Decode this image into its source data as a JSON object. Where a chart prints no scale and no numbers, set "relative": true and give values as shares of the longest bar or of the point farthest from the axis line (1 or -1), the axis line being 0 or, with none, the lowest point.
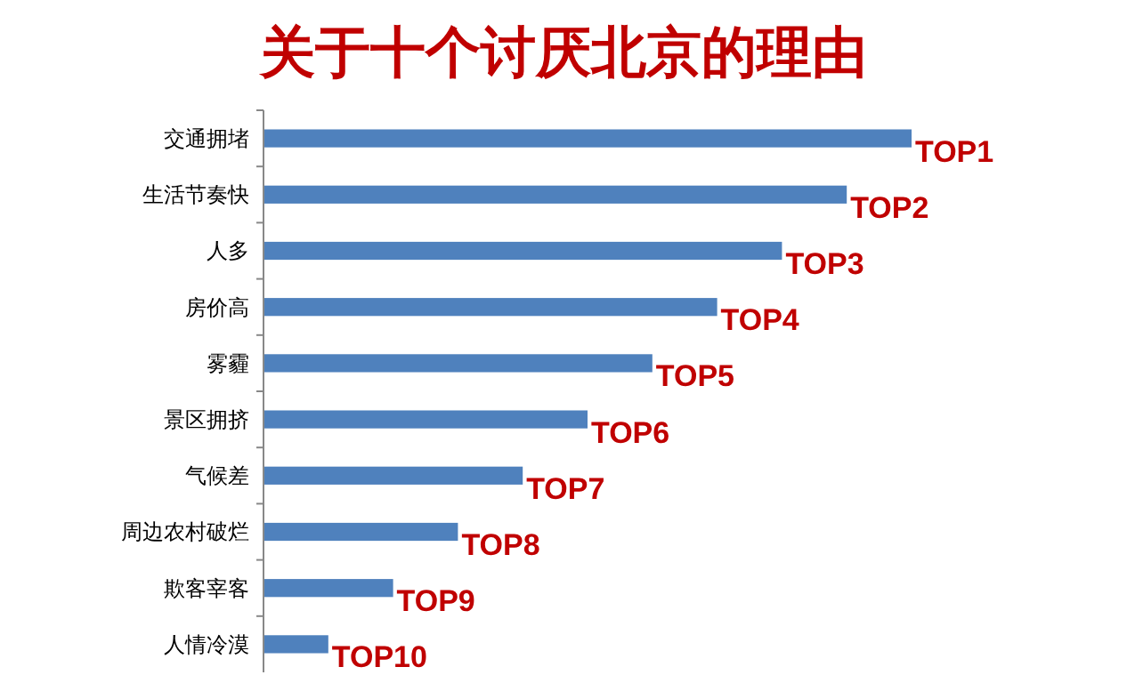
{
  "chart_data": {
    "type": "bar",
    "orientation": "horizontal",
    "relative": true,
    "title": "关于十个讨厌北京的理由",
    "categories": [
      "交通拥堵",
      "生活节奏快",
      "人多",
      "房价高",
      "雾霾",
      "景区拥挤",
      "气候差",
      "周边农村破烂",
      "欺客宰客",
      "人情冷漠"
    ],
    "values": [
      1,
      0.9,
      0.8,
      0.7,
      0.6,
      0.5,
      0.4,
      0.3,
      0.2,
      0.1
    ],
    "color": "#4f81bd",
    "annotations": [
      {
        "text": "TOP1",
        "x": 1,
        "y": "交通拥堵"
      },
      {
        "text": "TOP2",
        "x": 0.9,
        "y": "生活节奏快"
      },
      {
        "text": "TOP3",
        "x": 0.8,
        "y": "人多"
      },
      {
        "text": "TOP4",
        "x": 0.7,
        "y": "房价高"
      },
      {
        "text": "TOP5",
        "x": 0.6,
        "y": "雾霾"
      },
      {
        "text": "TOP6",
        "x": 0.5,
        "y": "景区拥挤"
      },
      {
        "text": "TOP7",
        "x": 0.4,
        "y": "气候差"
      },
      {
        "text": "TOP8",
        "x": 0.3,
        "y": "周边农村破烂"
      },
      {
        "text": "TOP9",
        "x": 0.2,
        "y": "欺客宰客"
      },
      {
        "text": "TOP10",
        "x": 0.1,
        "y": "人情冷漠"
      }
    ]
  }
}
